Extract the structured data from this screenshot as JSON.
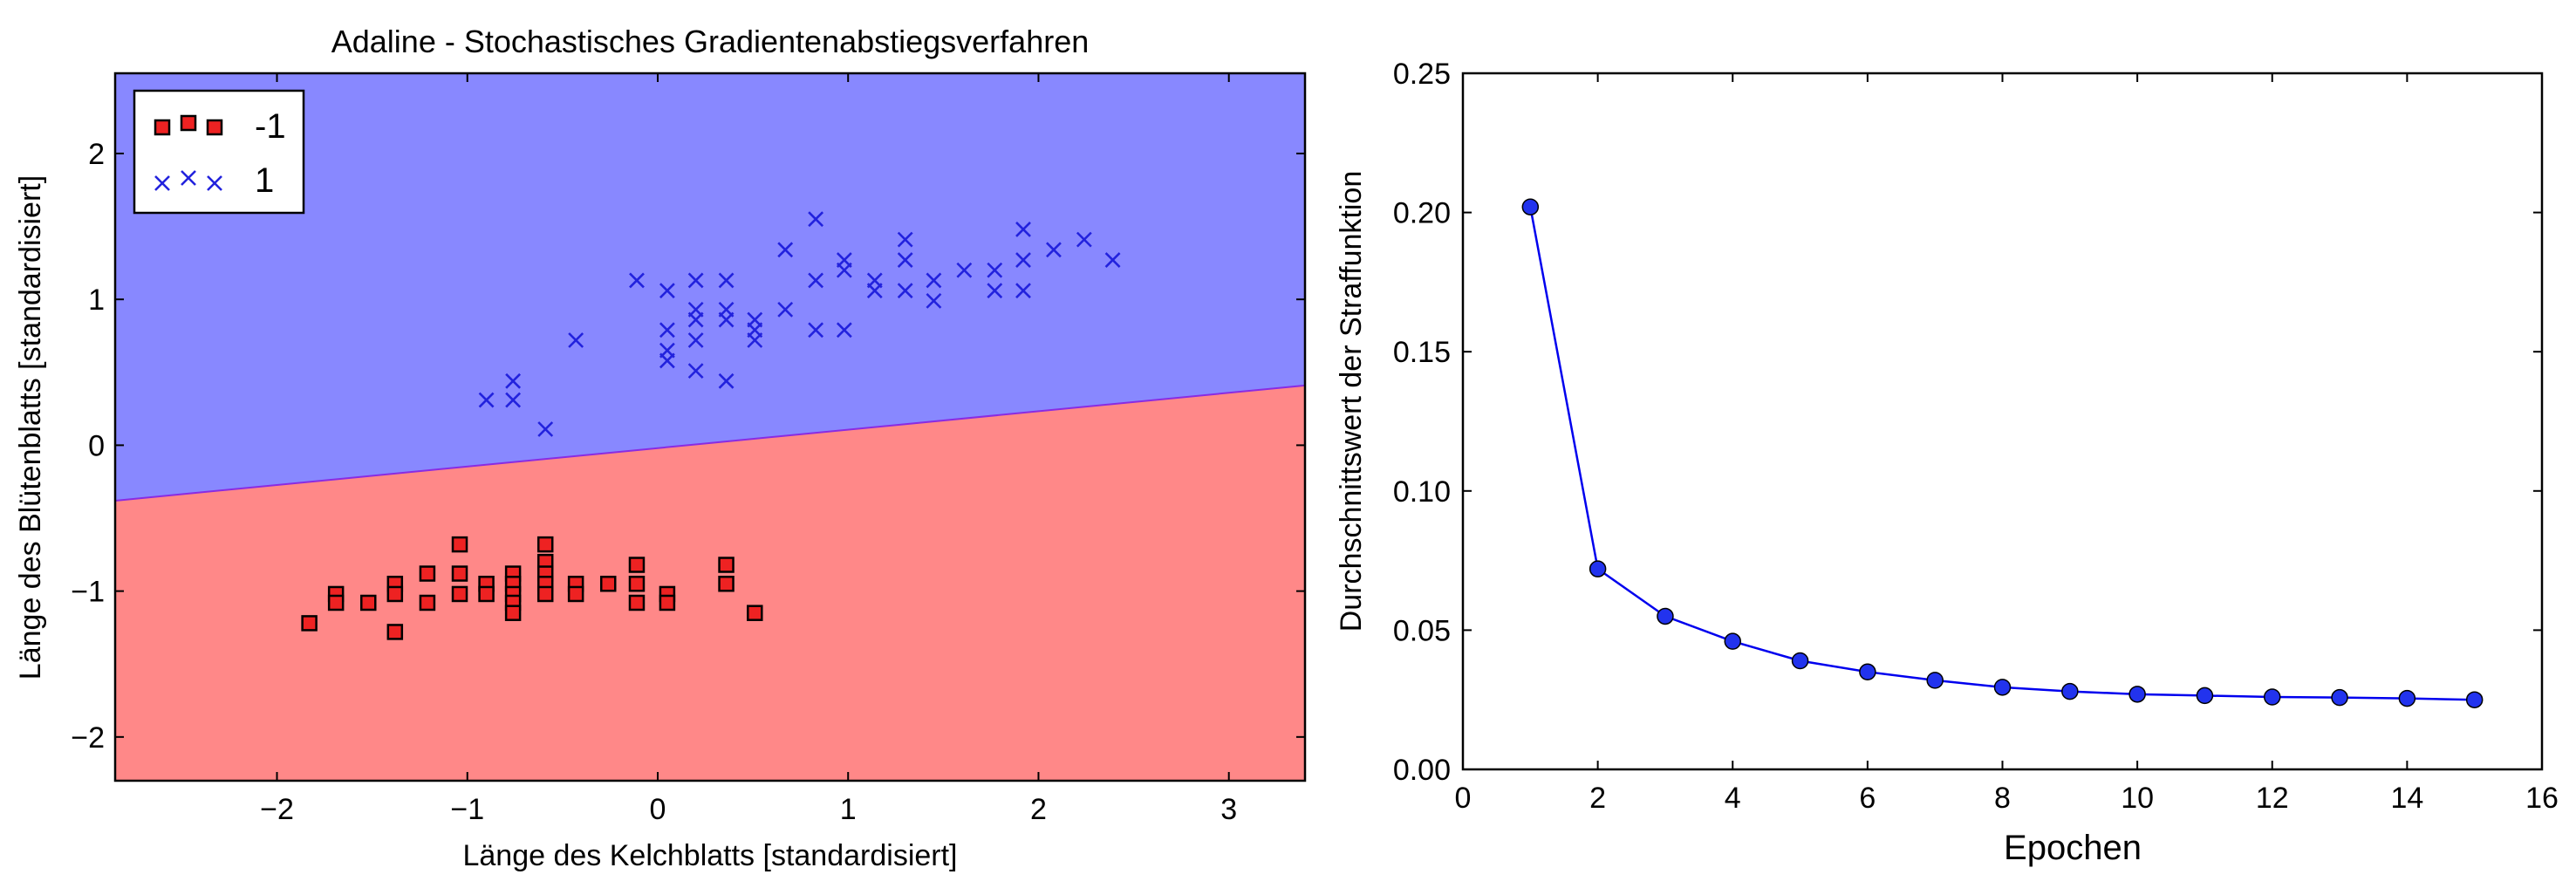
{
  "colors": {
    "region_neg": "#ff8888",
    "region_pos": "#8888ff",
    "boundary": "#8a2be2",
    "marker_neg": "#ee2222",
    "marker_pos": "#2222dd",
    "line": "#0000ee",
    "point": "#2233ee"
  },
  "chart_data": [
    {
      "type": "scatter",
      "title": "Adaline - Stochastisches Gradientenabstiegsverfahren",
      "xlabel": "Länge des Kelchblatts [standardisiert]",
      "ylabel": "Länge des Blütenblatts [standardisiert]",
      "xlim": [
        -2.85,
        3.4
      ],
      "ylim": [
        -2.3,
        2.55
      ],
      "xticks": [
        -2,
        -1,
        0,
        1,
        2,
        3
      ],
      "xtick_labels": [
        "−2",
        "−1",
        "0",
        "1",
        "2",
        "3"
      ],
      "yticks": [
        -2,
        -1,
        0,
        1,
        2
      ],
      "ytick_labels": [
        "−2",
        "−1",
        "0",
        "1",
        "2"
      ],
      "grid": false,
      "legend_position": "top-left",
      "decision_boundary": {
        "x": [
          -2.85,
          3.4
        ],
        "y": [
          -0.38,
          0.41
        ]
      },
      "regions": [
        {
          "class": "-1",
          "side": "below"
        },
        {
          "class": "1",
          "side": "above"
        }
      ],
      "series": [
        {
          "name": "-1",
          "marker": "square",
          "points": [
            [
              -1.83,
              -1.22
            ],
            [
              -1.69,
              -1.02
            ],
            [
              -1.69,
              -1.08
            ],
            [
              -1.52,
              -1.08
            ],
            [
              -1.38,
              -0.95
            ],
            [
              -1.38,
              -1.02
            ],
            [
              -1.38,
              -1.28
            ],
            [
              -1.21,
              -0.88
            ],
            [
              -1.21,
              -1.08
            ],
            [
              -1.04,
              -0.68
            ],
            [
              -1.04,
              -0.88
            ],
            [
              -1.04,
              -1.02
            ],
            [
              -0.9,
              -0.95
            ],
            [
              -0.9,
              -1.02
            ],
            [
              -0.76,
              -0.88
            ],
            [
              -0.76,
              -0.95
            ],
            [
              -0.76,
              -1.02
            ],
            [
              -0.76,
              -1.08
            ],
            [
              -0.76,
              -1.15
            ],
            [
              -0.59,
              -0.68
            ],
            [
              -0.59,
              -0.8
            ],
            [
              -0.59,
              -0.88
            ],
            [
              -0.59,
              -0.95
            ],
            [
              -0.59,
              -1.02
            ],
            [
              -0.43,
              -0.95
            ],
            [
              -0.43,
              -1.02
            ],
            [
              -0.26,
              -0.95
            ],
            [
              -0.11,
              -0.82
            ],
            [
              -0.11,
              -0.95
            ],
            [
              -0.11,
              -1.08
            ],
            [
              0.05,
              -1.02
            ],
            [
              0.05,
              -1.08
            ],
            [
              0.36,
              -0.82
            ],
            [
              0.36,
              -0.95
            ],
            [
              0.51,
              -1.15
            ]
          ]
        },
        {
          "name": "1",
          "marker": "x",
          "points": [
            [
              -0.9,
              0.31
            ],
            [
              -0.76,
              0.31
            ],
            [
              -0.76,
              0.44
            ],
            [
              -0.59,
              0.11
            ],
            [
              -0.43,
              0.72
            ],
            [
              -0.11,
              1.13
            ],
            [
              0.05,
              0.58
            ],
            [
              0.05,
              0.65
            ],
            [
              0.05,
              0.79
            ],
            [
              0.05,
              1.06
            ],
            [
              0.2,
              0.51
            ],
            [
              0.2,
              0.72
            ],
            [
              0.2,
              0.86
            ],
            [
              0.2,
              0.93
            ],
            [
              0.2,
              1.13
            ],
            [
              0.36,
              0.44
            ],
            [
              0.36,
              0.86
            ],
            [
              0.36,
              0.93
            ],
            [
              0.36,
              1.13
            ],
            [
              0.51,
              0.72
            ],
            [
              0.51,
              0.79
            ],
            [
              0.51,
              0.86
            ],
            [
              0.67,
              0.93
            ],
            [
              0.67,
              1.34
            ],
            [
              0.83,
              0.79
            ],
            [
              0.83,
              1.13
            ],
            [
              0.83,
              1.55
            ],
            [
              0.98,
              0.79
            ],
            [
              0.98,
              1.2
            ],
            [
              0.98,
              1.27
            ],
            [
              1.14,
              1.06
            ],
            [
              1.14,
              1.13
            ],
            [
              1.3,
              1.06
            ],
            [
              1.3,
              1.27
            ],
            [
              1.3,
              1.41
            ],
            [
              1.45,
              0.99
            ],
            [
              1.45,
              1.13
            ],
            [
              1.61,
              1.2
            ],
            [
              1.77,
              1.06
            ],
            [
              1.77,
              1.2
            ],
            [
              1.92,
              1.06
            ],
            [
              1.92,
              1.27
            ],
            [
              1.92,
              1.48
            ],
            [
              2.08,
              1.34
            ],
            [
              2.24,
              1.41
            ],
            [
              2.39,
              1.27
            ]
          ]
        }
      ]
    },
    {
      "type": "line",
      "title": "",
      "xlabel": "Epochen",
      "ylabel": "Durchschnittswert der Straffunktion",
      "xlim": [
        0,
        16
      ],
      "ylim": [
        0,
        0.25
      ],
      "xticks": [
        0,
        2,
        4,
        6,
        8,
        10,
        12,
        14,
        16
      ],
      "xtick_labels": [
        "0",
        "2",
        "4",
        "6",
        "8",
        "10",
        "12",
        "14",
        "16"
      ],
      "yticks": [
        0,
        0.05,
        0.1,
        0.15,
        0.2,
        0.25
      ],
      "ytick_labels": [
        "0.00",
        "0.05",
        "0.10",
        "0.15",
        "0.20",
        "0.25"
      ],
      "grid": false,
      "x": [
        1,
        2,
        3,
        4,
        5,
        6,
        7,
        8,
        9,
        10,
        11,
        12,
        13,
        14,
        15
      ],
      "values": [
        0.202,
        0.072,
        0.055,
        0.046,
        0.039,
        0.035,
        0.032,
        0.0295,
        0.028,
        0.027,
        0.0265,
        0.026,
        0.0258,
        0.0255,
        0.025
      ]
    }
  ]
}
